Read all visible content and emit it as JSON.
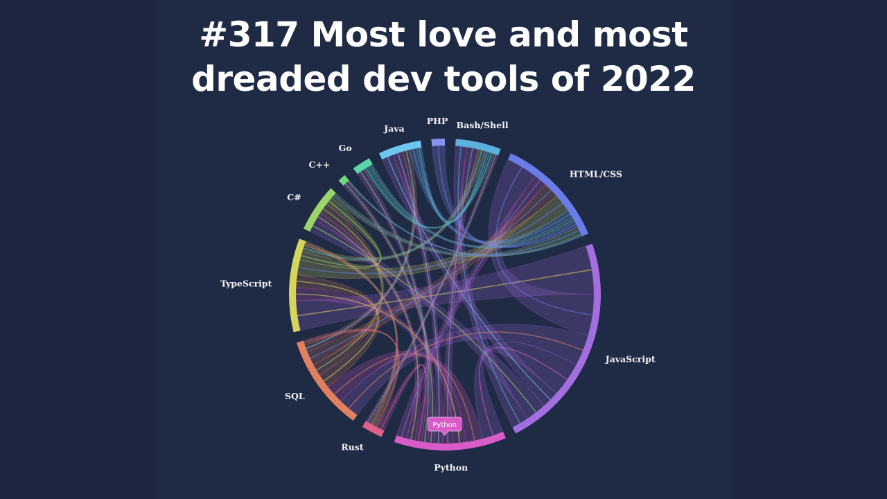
{
  "title": {
    "line1": "#317 Most love and most",
    "line2": "dreaded dev tools of 2022"
  },
  "tooltip": {
    "label": "Python",
    "color": "#d85cc8"
  },
  "chart_data": {
    "type": "chord",
    "groups": [
      {
        "name": "JavaScript",
        "color": "#a26ee0",
        "start_deg": 71,
        "end_deg": 153
      },
      {
        "name": "Python",
        "color": "#d85cc8",
        "start_deg": 157,
        "end_deg": 199
      },
      {
        "name": "Rust",
        "color": "#e0608a",
        "start_deg": 204,
        "end_deg": 212
      },
      {
        "name": "SQL",
        "color": "#e08060",
        "start_deg": 216,
        "end_deg": 252
      },
      {
        "name": "TypeScript",
        "color": "#d6d45a",
        "start_deg": 256,
        "end_deg": 291
      },
      {
        "name": "C#",
        "color": "#9bd66a",
        "start_deg": 295,
        "end_deg": 313
      },
      {
        "name": "C++",
        "color": "#6ed87a",
        "start_deg": 317,
        "end_deg": 320
      },
      {
        "name": "Go",
        "color": "#5ad6a8",
        "start_deg": 324,
        "end_deg": 331
      },
      {
        "name": "Java",
        "color": "#6ec7ee",
        "start_deg": 335,
        "end_deg": 351
      },
      {
        "name": "PHP",
        "color": "#8890f0",
        "start_deg": 355,
        "end_deg": 360
      },
      {
        "name": "Bash/Shell",
        "color": "#5cb0dc",
        "start_deg": 4,
        "end_deg": 21
      },
      {
        "name": "HTML/CSS",
        "color": "#6a7ce8",
        "start_deg": 25,
        "end_deg": 67
      }
    ],
    "links": [
      {
        "source": "JavaScript",
        "target": "TypeScript",
        "value": 14
      },
      {
        "source": "JavaScript",
        "target": "HTML/CSS",
        "value": 12
      },
      {
        "source": "JavaScript",
        "target": "SQL",
        "value": 9
      },
      {
        "source": "JavaScript",
        "target": "Python",
        "value": 10
      },
      {
        "source": "JavaScript",
        "target": "Java",
        "value": 5
      },
      {
        "source": "JavaScript",
        "target": "C#",
        "value": 6
      },
      {
        "source": "JavaScript",
        "target": "Bash/Shell",
        "value": 5
      },
      {
        "source": "Python",
        "target": "SQL",
        "value": 8
      },
      {
        "source": "Python",
        "target": "TypeScript",
        "value": 6
      },
      {
        "source": "Python",
        "target": "Bash/Shell",
        "value": 5
      },
      {
        "source": "Python",
        "target": "Java",
        "value": 4
      },
      {
        "source": "Python",
        "target": "C++",
        "value": 3
      },
      {
        "source": "Python",
        "target": "Go",
        "value": 3
      },
      {
        "source": "Python",
        "target": "Rust",
        "value": 3
      },
      {
        "source": "Python",
        "target": "C#",
        "value": 4
      },
      {
        "source": "Python",
        "target": "HTML/CSS",
        "value": 5
      },
      {
        "source": "SQL",
        "target": "TypeScript",
        "value": 6
      },
      {
        "source": "SQL",
        "target": "C#",
        "value": 5
      },
      {
        "source": "SQL",
        "target": "HTML/CSS",
        "value": 6
      },
      {
        "source": "SQL",
        "target": "Java",
        "value": 3
      },
      {
        "source": "SQL",
        "target": "Rust",
        "value": 2
      },
      {
        "source": "TypeScript",
        "target": "HTML/CSS",
        "value": 7
      },
      {
        "source": "TypeScript",
        "target": "C#",
        "value": 4
      },
      {
        "source": "TypeScript",
        "target": "Bash/Shell",
        "value": 3
      },
      {
        "source": "TypeScript",
        "target": "Rust",
        "value": 2
      },
      {
        "source": "Java",
        "target": "HTML/CSS",
        "value": 3
      },
      {
        "source": "Java",
        "target": "Bash/Shell",
        "value": 2
      },
      {
        "source": "Go",
        "target": "Bash/Shell",
        "value": 2
      },
      {
        "source": "Go",
        "target": "HTML/CSS",
        "value": 2
      },
      {
        "source": "Rust",
        "target": "Bash/Shell",
        "value": 2
      },
      {
        "source": "PHP",
        "target": "HTML/CSS",
        "value": 2
      },
      {
        "source": "C#",
        "target": "HTML/CSS",
        "value": 3
      },
      {
        "source": "C++",
        "target": "HTML/CSS",
        "value": 1
      }
    ]
  }
}
